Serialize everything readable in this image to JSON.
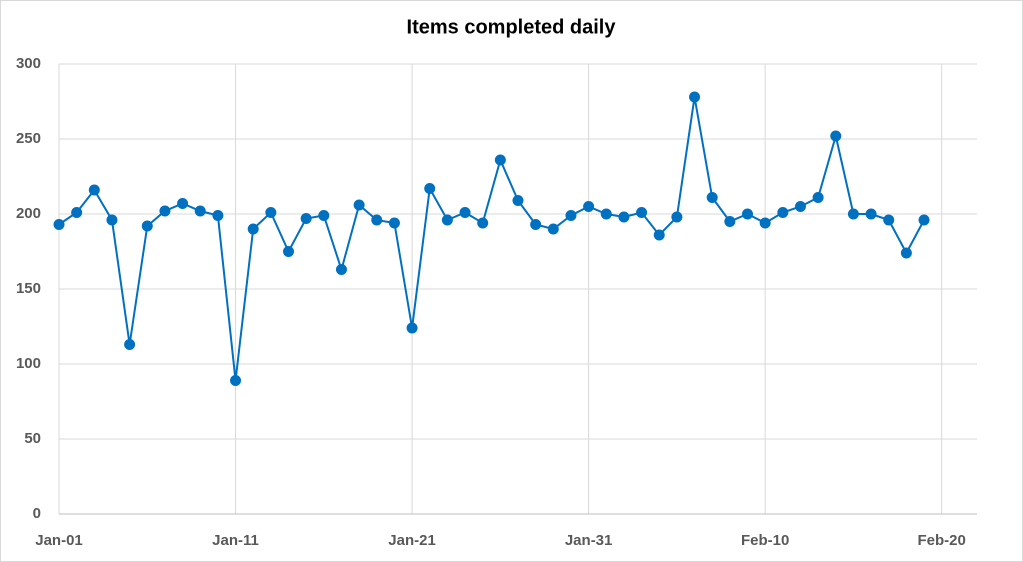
{
  "chart_data": {
    "type": "line",
    "title": "Items completed daily",
    "x": [
      "Jan-01",
      "Jan-02",
      "Jan-03",
      "Jan-04",
      "Jan-05",
      "Jan-06",
      "Jan-07",
      "Jan-08",
      "Jan-09",
      "Jan-10",
      "Jan-11",
      "Jan-12",
      "Jan-13",
      "Jan-14",
      "Jan-15",
      "Jan-16",
      "Jan-17",
      "Jan-18",
      "Jan-19",
      "Jan-20",
      "Jan-21",
      "Jan-22",
      "Jan-23",
      "Jan-24",
      "Jan-25",
      "Jan-26",
      "Jan-27",
      "Jan-28",
      "Jan-29",
      "Jan-30",
      "Jan-31",
      "Feb-01",
      "Feb-02",
      "Feb-03",
      "Feb-04",
      "Feb-05",
      "Feb-06",
      "Feb-07",
      "Feb-08",
      "Feb-09",
      "Feb-10",
      "Feb-11",
      "Feb-12",
      "Feb-13",
      "Feb-14",
      "Feb-15",
      "Feb-16",
      "Feb-17",
      "Feb-18",
      "Feb-19"
    ],
    "series": [
      {
        "name": "Items completed",
        "color": "#0070c0",
        "values": [
          193,
          201,
          216,
          196,
          113,
          192,
          202,
          207,
          202,
          199,
          89,
          190,
          201,
          175,
          197,
          199,
          163,
          206,
          196,
          194,
          124,
          217,
          196,
          201,
          194,
          236,
          209,
          193,
          190,
          199,
          205,
          200,
          198,
          201,
          186,
          198,
          278,
          211,
          195,
          200,
          194,
          201,
          205,
          211,
          252,
          200,
          200,
          196,
          174,
          196
        ]
      }
    ],
    "xlim": [
      "Jan-01",
      "Feb-22"
    ],
    "xticks": [
      "Jan-01",
      "Jan-11",
      "Jan-21",
      "Jan-31",
      "Feb-10",
      "Feb-20"
    ],
    "ylim": [
      0,
      300
    ],
    "yticks": [
      0,
      50,
      100,
      150,
      200,
      250,
      300
    ],
    "grid": true
  }
}
